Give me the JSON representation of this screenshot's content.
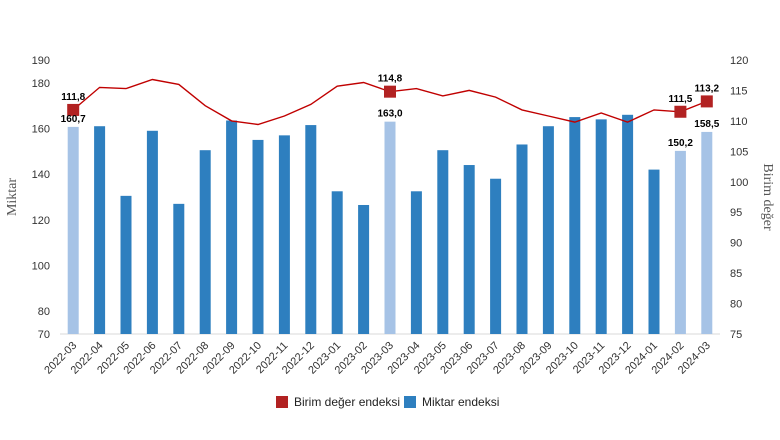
{
  "chart_data": {
    "type": "bar",
    "categories": [
      "2022-03",
      "2022-04",
      "2022-05",
      "2022-06",
      "2022-07",
      "2022-08",
      "2022-09",
      "2022-10",
      "2022-11",
      "2022-12",
      "2023-01",
      "2023-02",
      "2023-03",
      "2023-04",
      "2023-05",
      "2023-06",
      "2023-07",
      "2023-08",
      "2023-09",
      "2023-10",
      "2023-11",
      "2023-12",
      "2024-01",
      "2024-02",
      "2024-03"
    ],
    "series": [
      {
        "name": "Miktar endeksi",
        "type": "bar",
        "axis": "left",
        "color": "#2e7fbf",
        "highlight_color": "#a6c3e6",
        "highlighted_indices": [
          0,
          12,
          23,
          24
        ],
        "values": [
          160.7,
          161,
          130.5,
          159,
          127,
          150.5,
          163.5,
          155,
          157,
          161.5,
          132.5,
          126.5,
          163.0,
          132.5,
          150.5,
          144,
          138,
          153,
          161,
          165,
          164,
          166,
          142,
          150.2,
          158.5
        ]
      },
      {
        "name": "Birim değer endeksi",
        "type": "line",
        "axis": "right",
        "color": "#c00000",
        "marker_color": "#b22222",
        "marked_indices": [
          0,
          12,
          23,
          24
        ],
        "values": [
          111.8,
          115.5,
          115.3,
          116.8,
          116.0,
          112.5,
          110.0,
          109.4,
          110.8,
          112.7,
          115.7,
          116.3,
          114.8,
          115.3,
          114.1,
          115.0,
          113.9,
          111.8,
          110.8,
          109.8,
          111.3,
          109.8,
          111.8,
          111.5,
          113.2
        ]
      }
    ],
    "data_labels": {
      "bars": [
        {
          "index": 0,
          "text": "160,7"
        },
        {
          "index": 12,
          "text": "163,0"
        },
        {
          "index": 23,
          "text": "150,2"
        },
        {
          "index": 24,
          "text": "158,5"
        }
      ],
      "line": [
        {
          "index": 0,
          "text": "111,8"
        },
        {
          "index": 12,
          "text": "114,8"
        },
        {
          "index": 23,
          "text": "111,5"
        },
        {
          "index": 24,
          "text": "113,2"
        }
      ]
    },
    "ylabel_left": "Miktar",
    "ylabel_right": "Birim değer",
    "ylim_left": [
      70,
      190
    ],
    "ylim_right": [
      75,
      120
    ],
    "yticks_left": [
      70,
      80,
      100,
      120,
      140,
      160,
      180,
      190
    ],
    "yticks_right": [
      75,
      80,
      85,
      90,
      95,
      100,
      105,
      110,
      115,
      120
    ],
    "grid": false,
    "legend_position": "bottom"
  }
}
